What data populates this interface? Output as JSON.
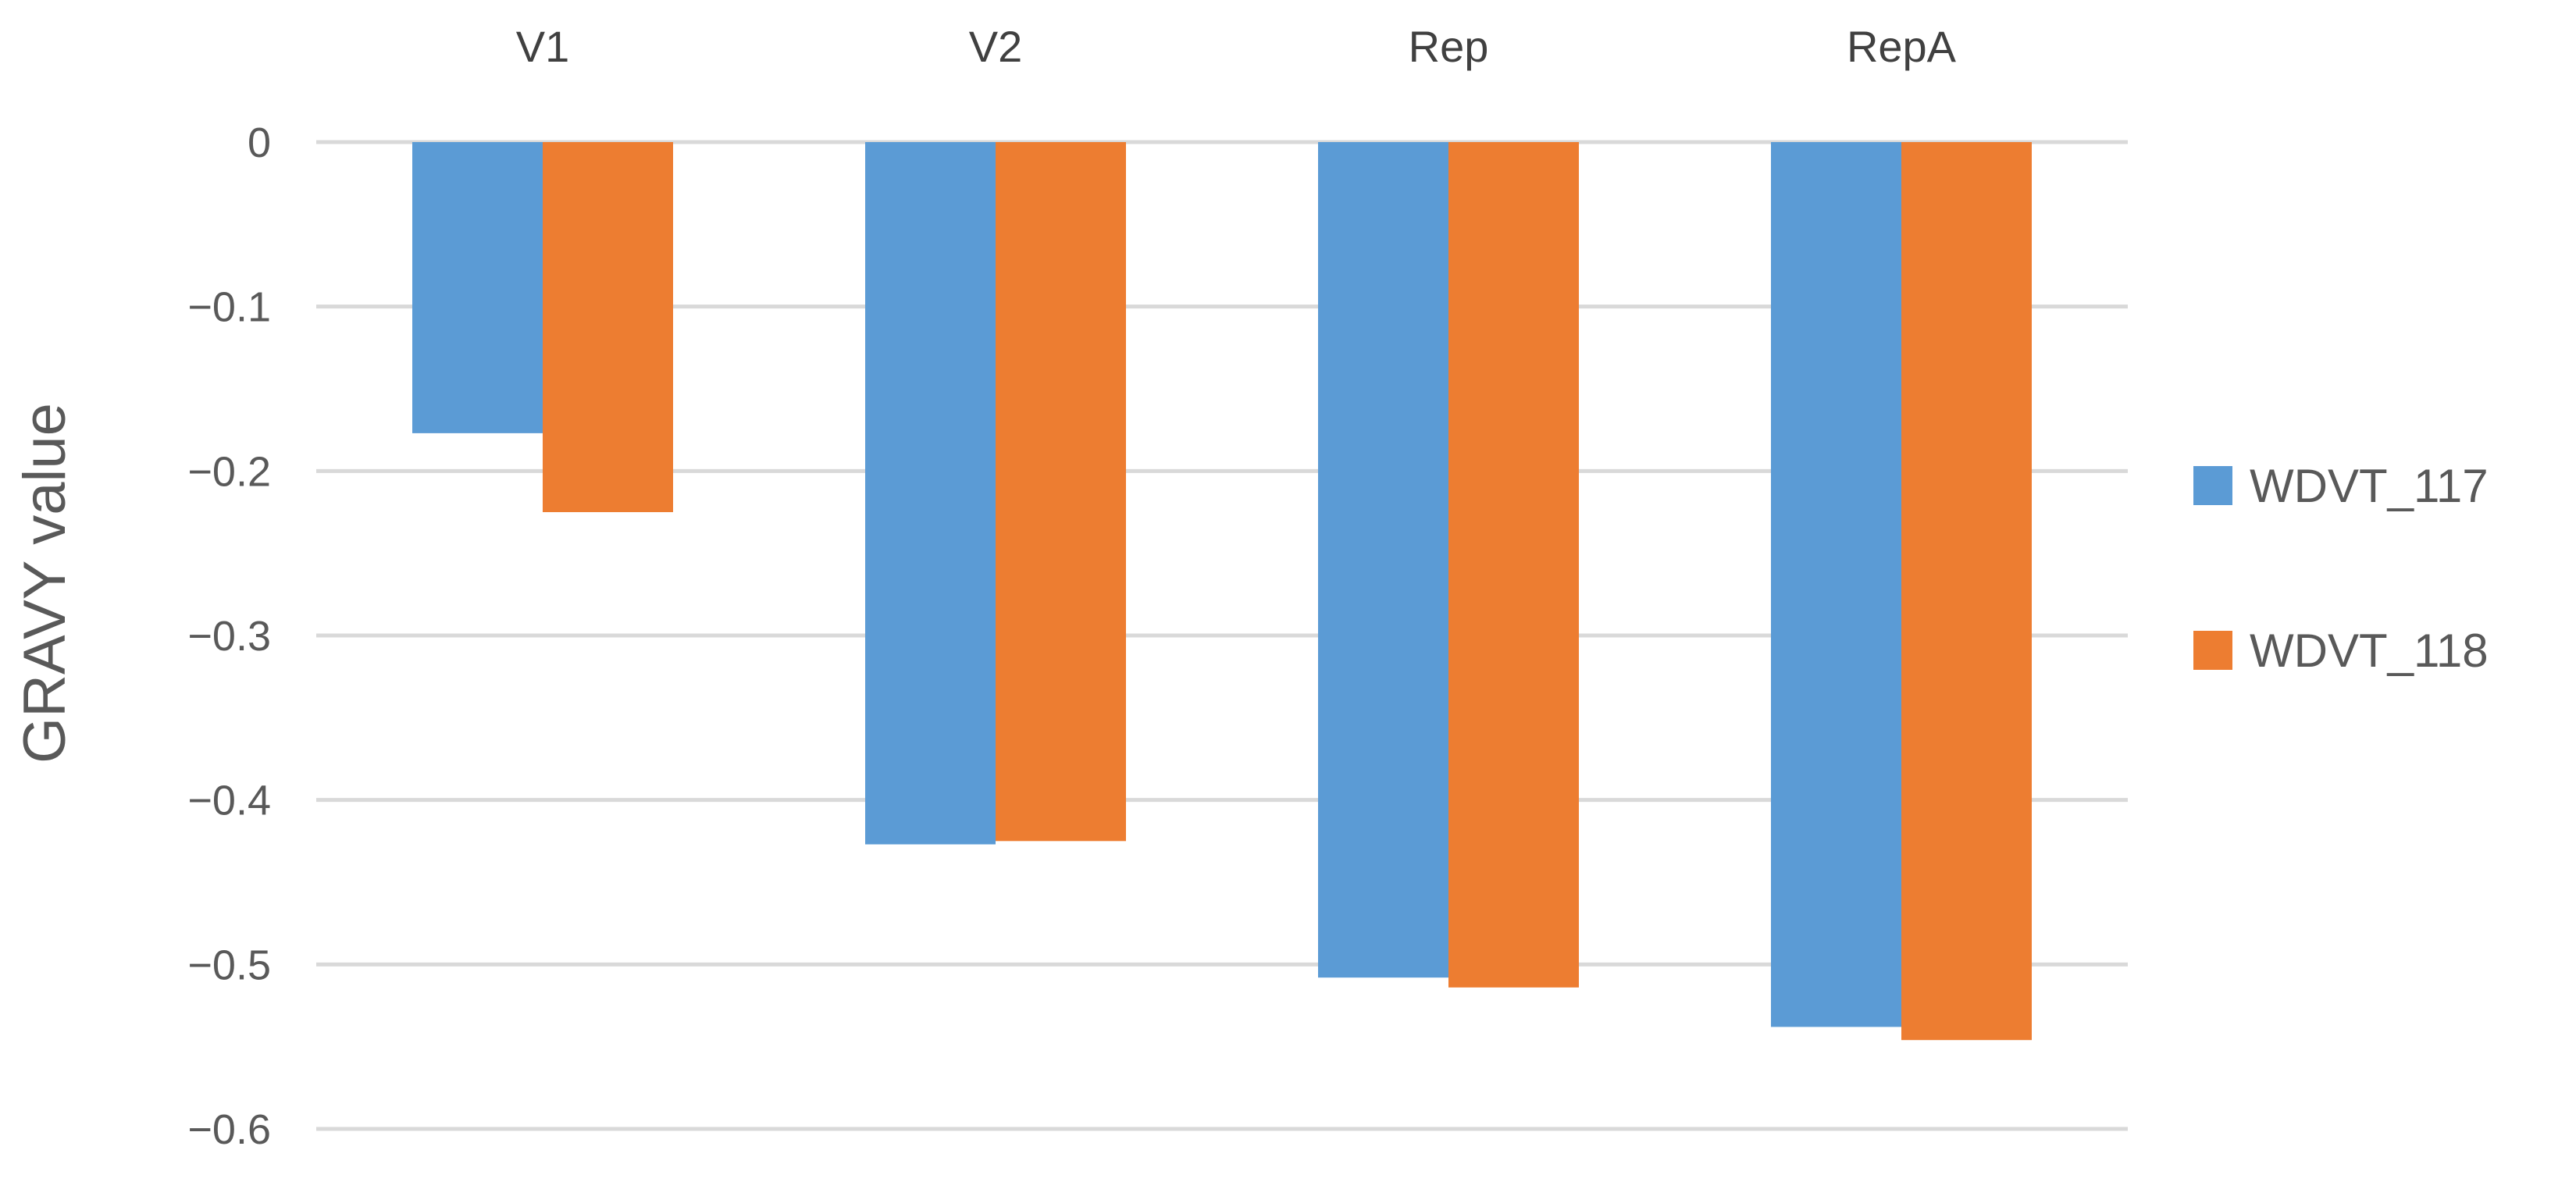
{
  "chart_data": {
    "type": "bar",
    "categories": [
      "V1",
      "V2",
      "Rep",
      "RepA"
    ],
    "series": [
      {
        "name": "WDVT_117",
        "color": "#5b9bd5",
        "values": [
          -0.177,
          -0.427,
          -0.508,
          -0.538
        ]
      },
      {
        "name": "WDVT_118",
        "color": "#ed7d31",
        "values": [
          -0.225,
          -0.425,
          -0.514,
          -0.546
        ]
      }
    ],
    "title": "",
    "xlabel": "",
    "ylabel": "GRAVY value",
    "ylim": [
      -0.6,
      0
    ],
    "yticks": [
      0,
      -0.1,
      -0.2,
      -0.3,
      -0.4,
      -0.5,
      -0.6
    ],
    "ytick_labels": [
      "0",
      "−0.1",
      "−0.2",
      "−0.3",
      "−0.4",
      "−0.5",
      "−0.6"
    ],
    "category_axis_position": "top",
    "grid": true,
    "legend_position": "right"
  }
}
